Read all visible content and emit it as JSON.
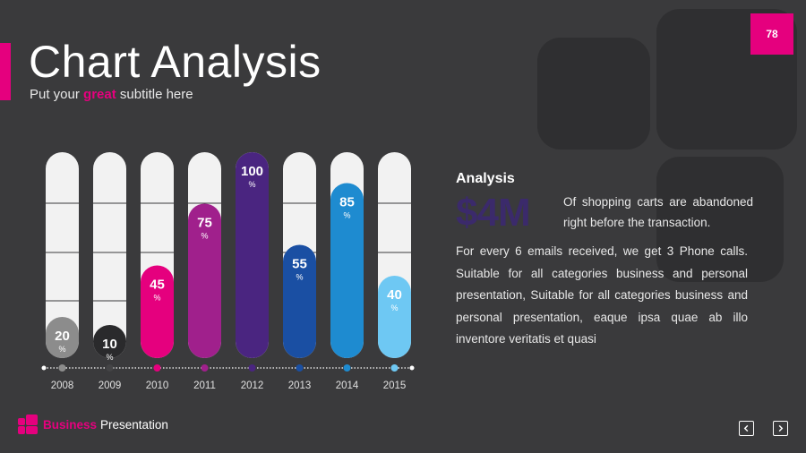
{
  "header": {
    "title": "Chart Analysis",
    "subtitle_pre": "Put your ",
    "subtitle_highlight": "great",
    "subtitle_post": " subtitle here",
    "page_number": "78"
  },
  "analysis": {
    "heading": "Analysis",
    "big_value": "$4M",
    "big_value_desc": "Of shopping carts are abandoned right before the transaction.",
    "body": "For every 6 emails received, we get 3 Phone calls. Suitable for all categories business and personal presentation, Suitable for all categories business and personal presentation, eaque ipsa quae ab illo inventore veritatis et quasi"
  },
  "footer": {
    "brand_bold": "Business",
    "brand_rest": "Presentation",
    "prev_icon": "chevron-left-icon",
    "next_icon": "chevron-right-icon"
  },
  "colors": {
    "accent": "#e5007e",
    "background": "#3a3a3c"
  },
  "chart_data": {
    "type": "bar",
    "title": "",
    "xlabel": "",
    "ylabel": "",
    "ylim": [
      0,
      100
    ],
    "unit": "%",
    "categories": [
      "2008",
      "2009",
      "2010",
      "2011",
      "2012",
      "2013",
      "2014",
      "2015"
    ],
    "values": [
      20,
      10,
      45,
      75,
      100,
      55,
      85,
      40
    ],
    "colors": [
      "#8c8c8c",
      "#2a2a2c",
      "#e5007e",
      "#a0208c",
      "#4a2580",
      "#1a4fa3",
      "#1e8bd0",
      "#6ec8f3"
    ],
    "value_label_colors": [
      "#ffffff",
      "#ffffff",
      "#ffffff",
      "#ffffff",
      "#ffffff",
      "#ffffff",
      "#ffffff",
      "#ffffff"
    ]
  }
}
